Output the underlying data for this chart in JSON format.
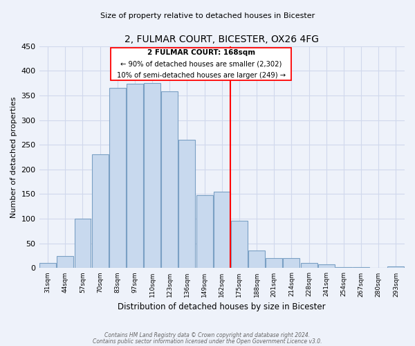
{
  "title": "2, FULMAR COURT, BICESTER, OX26 4FG",
  "subtitle": "Size of property relative to detached houses in Bicester",
  "xlabel": "Distribution of detached houses by size in Bicester",
  "ylabel": "Number of detached properties",
  "bar_labels": [
    "31sqm",
    "44sqm",
    "57sqm",
    "70sqm",
    "83sqm",
    "97sqm",
    "110sqm",
    "123sqm",
    "136sqm",
    "149sqm",
    "162sqm",
    "175sqm",
    "188sqm",
    "201sqm",
    "214sqm",
    "228sqm",
    "241sqm",
    "254sqm",
    "267sqm",
    "280sqm",
    "293sqm"
  ],
  "bar_values": [
    10,
    25,
    100,
    230,
    365,
    373,
    375,
    358,
    260,
    148,
    155,
    96,
    35,
    20,
    20,
    11,
    7,
    2,
    2,
    0,
    3
  ],
  "bar_color": "#c8d9ee",
  "bar_edge_color": "#7aa0c4",
  "vline_x_index": 11,
  "annotation_title": "2 FULMAR COURT: 168sqm",
  "annotation_line1": "← 90% of detached houses are smaller (2,302)",
  "annotation_line2": "10% of semi-detached houses are larger (249) →",
  "ylim": [
    0,
    450
  ],
  "yticks": [
    0,
    50,
    100,
    150,
    200,
    250,
    300,
    350,
    400,
    450
  ],
  "footer_line1": "Contains HM Land Registry data © Crown copyright and database right 2024.",
  "footer_line2": "Contains public sector information licensed under the Open Government Licence v3.0.",
  "bg_color": "#eef2fa",
  "grid_color": "#d0d8ec"
}
